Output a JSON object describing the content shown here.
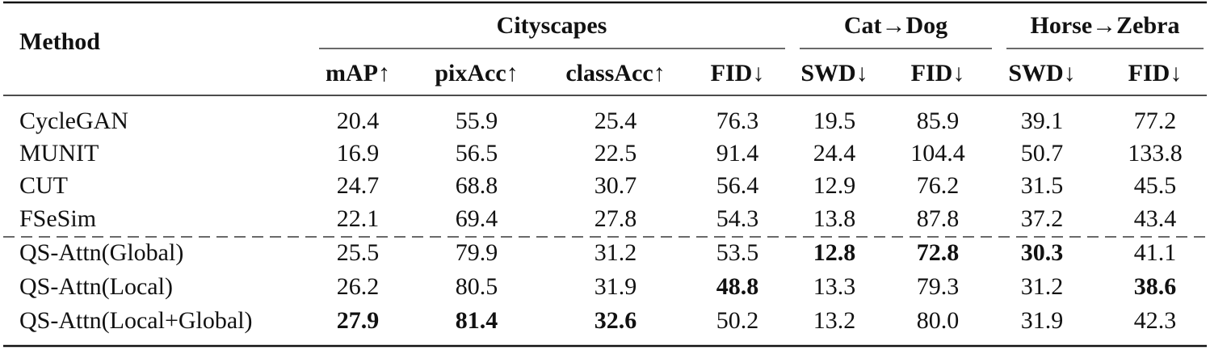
{
  "table": {
    "header": {
      "method": "Method",
      "groups": [
        "Cityscapes",
        "Cat→Dog",
        "Horse→Zebra"
      ],
      "columns": [
        "mAP↑",
        "pixAcc↑",
        "classAcc↑",
        "FID↓",
        "SWD↓",
        "FID↓",
        "SWD↓",
        "FID↓"
      ]
    },
    "rows": [
      [
        "CycleGAN",
        "20.4",
        "55.9",
        "25.4",
        "76.3",
        "19.5",
        "85.9",
        "39.1",
        "77.2"
      ],
      [
        "MUNIT",
        "16.9",
        "56.5",
        "22.5",
        "91.4",
        "24.4",
        "104.4",
        "50.7",
        "133.8"
      ],
      [
        "CUT",
        "24.7",
        "68.8",
        "30.7",
        "56.4",
        "12.9",
        "76.2",
        "31.5",
        "45.5"
      ],
      [
        "FSeSim",
        "22.1",
        "69.4",
        "27.8",
        "54.3",
        "13.8",
        "87.8",
        "37.2",
        "43.4"
      ],
      [
        "QS-Attn(Global)",
        "25.5",
        "79.9",
        "31.2",
        "53.5",
        "12.8",
        "72.8",
        "30.3",
        "41.1"
      ],
      [
        "QS-Attn(Local)",
        "26.2",
        "80.5",
        "31.9",
        "48.8",
        "13.3",
        "79.3",
        "31.2",
        "38.6"
      ],
      [
        "QS-Attn(Local+Global)",
        "27.9",
        "81.4",
        "32.6",
        "50.2",
        "13.2",
        "80.0",
        "31.9",
        "42.3"
      ]
    ]
  }
}
